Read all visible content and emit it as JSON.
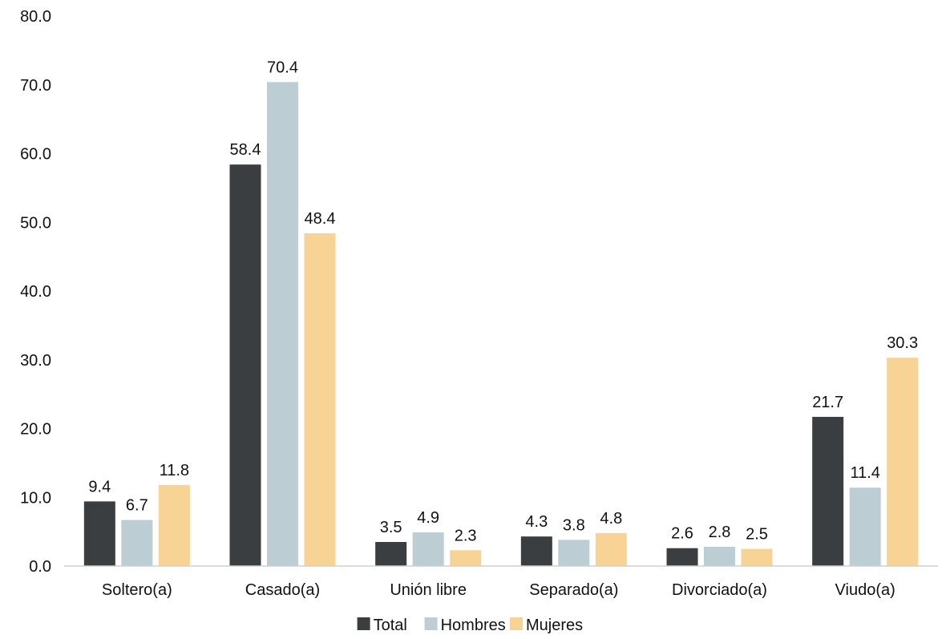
{
  "chart_data": {
    "type": "bar",
    "categories": [
      "Soltero(a)",
      "Casado(a)",
      "Unión libre",
      "Separado(a)",
      "Divorciado(a)",
      "Viudo(a)"
    ],
    "series": [
      {
        "name": "Total",
        "values": [
          9.4,
          58.4,
          3.5,
          4.3,
          2.6,
          21.7
        ],
        "color": "#3b3e41"
      },
      {
        "name": "Hombres",
        "values": [
          6.7,
          70.4,
          4.9,
          3.8,
          2.8,
          11.4
        ],
        "color": "#bccdd4"
      },
      {
        "name": "Mujeres",
        "values": [
          11.8,
          48.4,
          2.3,
          4.8,
          2.5,
          30.3
        ],
        "color": "#f8d396"
      }
    ],
    "ylim": [
      0,
      80
    ],
    "yticks": [
      "0.0",
      "10.0",
      "20.0",
      "30.0",
      "40.0",
      "50.0",
      "60.0",
      "70.0",
      "80.0"
    ],
    "grid": false,
    "legend_position": "bottom-center",
    "title": "",
    "xlabel": "",
    "ylabel": ""
  }
}
